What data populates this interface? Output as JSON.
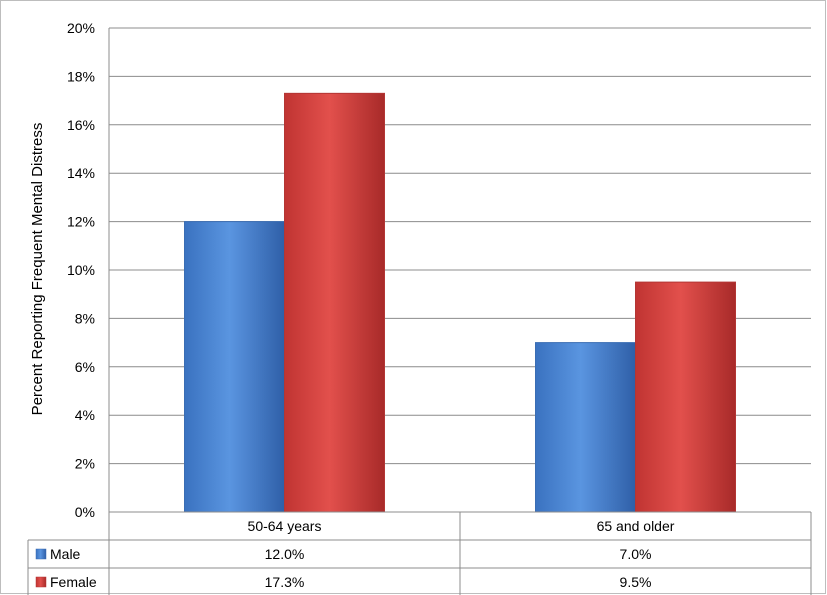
{
  "chart_data": {
    "type": "bar",
    "title": "",
    "xlabel": "",
    "ylabel": "Percent Reporting Frequent Mental Distress",
    "ylim": [
      0,
      20
    ],
    "y_ticks": [
      "0%",
      "2%",
      "4%",
      "6%",
      "8%",
      "10%",
      "12%",
      "14%",
      "16%",
      "18%",
      "20%"
    ],
    "categories": [
      "50-64 years",
      "65 and older"
    ],
    "grid": true,
    "legend": "data-table",
    "series": [
      {
        "name": "Male",
        "values": [
          12.0,
          7.0
        ],
        "labels": [
          "12.0%",
          "7.0%"
        ],
        "color": "#4a86d4"
      },
      {
        "name": "Female",
        "values": [
          17.3,
          9.5
        ],
        "labels": [
          "17.3%",
          "9.5%"
        ],
        "color": "#d23f3d"
      }
    ]
  }
}
